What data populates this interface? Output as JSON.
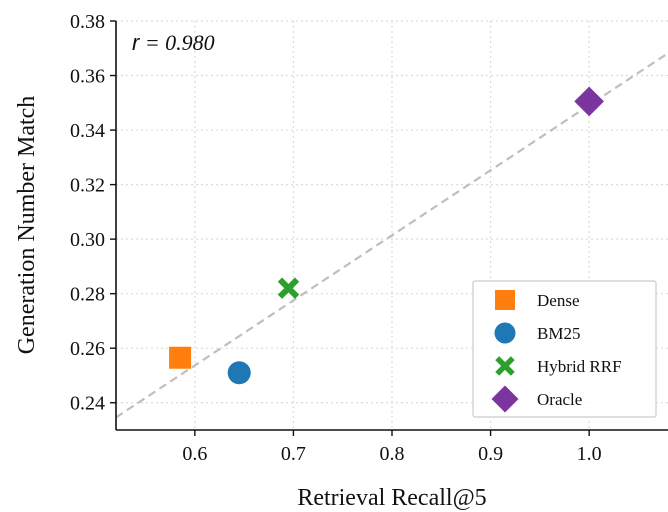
{
  "chart_data": {
    "type": "scatter",
    "xlabel": "Retrieval Recall@5",
    "ylabel": "Generation Number Match",
    "xlim": [
      0.52,
      1.08
    ],
    "ylim": [
      0.23,
      0.38
    ],
    "xticks": [
      0.6,
      0.7,
      0.8,
      0.9,
      1.0
    ],
    "xtick_labels": [
      "0.6",
      "0.7",
      "0.8",
      "0.9",
      "1.0"
    ],
    "yticks": [
      0.24,
      0.26,
      0.28,
      0.3,
      0.32,
      0.34,
      0.36,
      0.38
    ],
    "ytick_labels": [
      "0.24",
      "0.26",
      "0.28",
      "0.30",
      "0.32",
      "0.34",
      "0.36",
      "0.38"
    ],
    "grid": true,
    "legend_position": "bottom-right",
    "annotation": {
      "symbol": "r",
      "text": " = 0.980"
    },
    "fit_line": {
      "slope": 0.2385,
      "intercept": 0.1106,
      "color": "#bfbfbf",
      "style": "dashed"
    },
    "series": [
      {
        "name": "Dense",
        "x": 0.585,
        "y": 0.2565,
        "marker": "square",
        "color": "#ff7f0e"
      },
      {
        "name": "BM25",
        "x": 0.645,
        "y": 0.251,
        "marker": "circle",
        "color": "#1f77b4"
      },
      {
        "name": "Hybrid RRF",
        "x": 0.695,
        "y": 0.282,
        "marker": "x",
        "color": "#2ca02c"
      },
      {
        "name": "Oracle",
        "x": 1.0,
        "y": 0.3505,
        "marker": "diamond",
        "color": "#7b35a0"
      }
    ]
  }
}
